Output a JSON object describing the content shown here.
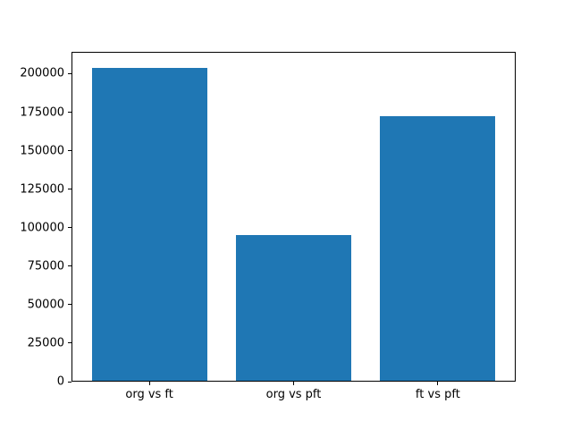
{
  "chart_data": {
    "type": "bar",
    "categories": [
      "org vs ft",
      "org vs pft",
      "ft vs pft"
    ],
    "values": [
      204000,
      95000,
      173000
    ],
    "title": "",
    "xlabel": "",
    "ylabel": "",
    "ylim": [
      0,
      214200
    ],
    "yticks": [
      0,
      25000,
      50000,
      75000,
      100000,
      125000,
      150000,
      175000,
      200000
    ],
    "grid": "off",
    "legend": "none",
    "bar_color": "#1f77b4",
    "background_color": "#ffffff",
    "spine_color": "#000000"
  }
}
